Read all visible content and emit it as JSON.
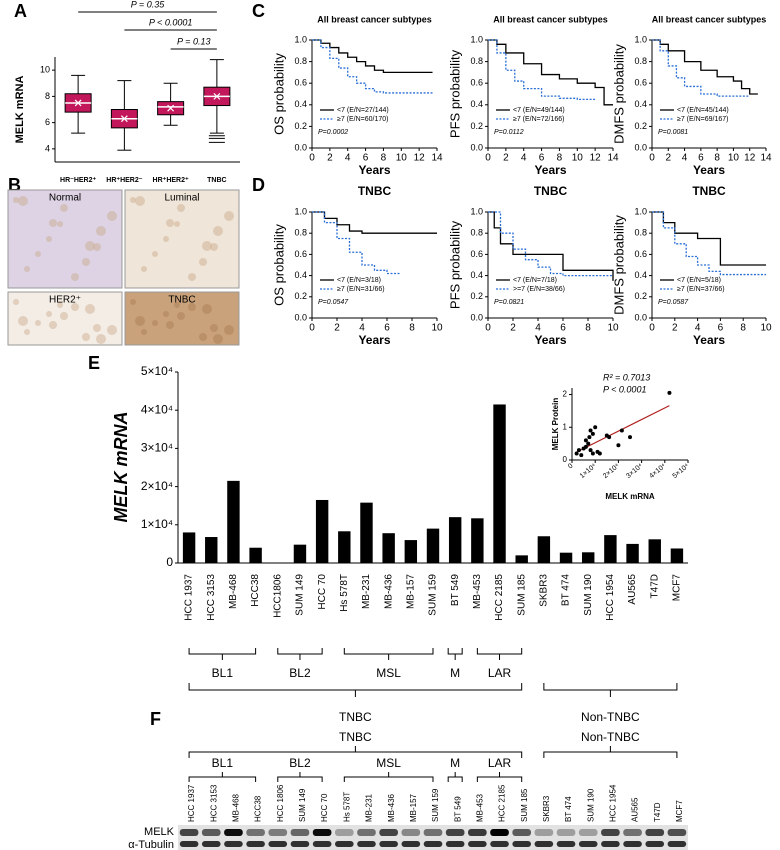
{
  "panel_labels": [
    "A",
    "B",
    "C",
    "D",
    "E",
    "F"
  ],
  "chart_data": [
    {
      "type": "box",
      "ylabel": "MELK mRNA",
      "color": "#c2185b",
      "categories": [
        "HR⁻HER2⁺",
        "HR⁺HER2⁻",
        "HR⁺HER2⁺",
        "TNBC"
      ],
      "boxes": [
        {
          "whisker_low": 5.2,
          "q1": 6.8,
          "median": 7.5,
          "q3": 8.2,
          "whisker_high": 9.6,
          "mean": 7.5
        },
        {
          "whisker_low": 3.9,
          "q1": 5.6,
          "median": 6.3,
          "q3": 7.0,
          "whisker_high": 9.2,
          "mean": 6.3
        },
        {
          "whisker_low": 5.8,
          "q1": 6.6,
          "median": 7.2,
          "q3": 7.6,
          "whisker_high": 9.0,
          "mean": 7.1
        },
        {
          "whisker_low": 5.2,
          "q1": 7.3,
          "median": 8.0,
          "q3": 8.7,
          "whisker_high": 10.8,
          "mean": 8.0,
          "outliers": [
            4.5,
            4.8,
            5.0
          ]
        }
      ],
      "ylim": [
        3,
        11
      ],
      "yticks": [
        4,
        6,
        8,
        10
      ],
      "comparisons": [
        "P = 0.35",
        "P < 0.0001",
        "P = 0.13"
      ]
    },
    {
      "type": "step",
      "title": "All breast cancer subtypes",
      "ylabel": "OS probability",
      "xlabel": "Years",
      "xlim": [
        0,
        14
      ],
      "xticks": [
        0,
        2,
        4,
        6,
        8,
        10,
        12,
        14
      ],
      "ylim": [
        0,
        1
      ],
      "yticks": [
        {
          "value": 0,
          "label": "0.0"
        },
        0.2,
        0.4,
        0.6,
        0.8,
        {
          "value": 1,
          "label": "1.0"
        }
      ],
      "series": [
        {
          "name": "<7 (E/N=27/144)",
          "color": "#000000",
          "x": [
            0,
            1,
            2,
            3,
            4,
            5,
            6,
            7,
            8,
            10,
            12,
            13.5
          ],
          "values": [
            1,
            0.97,
            0.93,
            0.88,
            0.84,
            0.8,
            0.76,
            0.72,
            0.7,
            0.7,
            0.7,
            0.7
          ]
        },
        {
          "name": "≥7 (E/N=60/170)",
          "color": "#2a6fd6",
          "x": [
            0,
            1,
            2,
            3,
            4,
            5,
            6,
            7,
            8,
            10,
            12,
            13.5
          ],
          "values": [
            1,
            0.93,
            0.83,
            0.74,
            0.66,
            0.6,
            0.55,
            0.52,
            0.51,
            0.51,
            0.51,
            0.51
          ]
        }
      ],
      "annotation": "P=0.0002"
    },
    {
      "type": "step",
      "title": "All breast cancer subtypes",
      "ylabel": "PFS probability",
      "xlabel": "Years",
      "xlim": [
        0,
        14
      ],
      "xticks": [
        0,
        2,
        4,
        6,
        8,
        10,
        12,
        14
      ],
      "ylim": [
        0,
        1
      ],
      "yticks": [
        {
          "value": 0,
          "label": "0.0"
        },
        0.2,
        0.4,
        0.6,
        0.8,
        {
          "value": 1,
          "label": "1.0"
        }
      ],
      "series": [
        {
          "name": "<7 (E/N=49/144)",
          "color": "#000000",
          "x": [
            0,
            1,
            2,
            4,
            6,
            8,
            10,
            12,
            13,
            14
          ],
          "values": [
            1,
            0.96,
            0.88,
            0.78,
            0.68,
            0.64,
            0.6,
            0.56,
            0.4,
            0.4
          ]
        },
        {
          "name": "≥7 (E/N=72/166)",
          "color": "#2a6fd6",
          "x": [
            0,
            1,
            2,
            3,
            4,
            6,
            8,
            10,
            12
          ],
          "values": [
            1,
            0.88,
            0.72,
            0.62,
            0.55,
            0.48,
            0.46,
            0.45,
            0.45
          ]
        }
      ],
      "annotation": "P=0.0112"
    },
    {
      "type": "step",
      "title": "All breast cancer subtypes",
      "ylabel": "DMFS probability",
      "xlabel": "Years",
      "xlim": [
        0,
        14
      ],
      "xticks": [
        0,
        2,
        4,
        6,
        8,
        10,
        12,
        14
      ],
      "ylim": [
        0,
        1
      ],
      "yticks": [
        {
          "value": 0,
          "label": "0.0"
        },
        0.2,
        0.4,
        0.6,
        0.8,
        {
          "value": 1,
          "label": "1.0"
        }
      ],
      "series": [
        {
          "name": "<7 (E/N=45/144)",
          "color": "#000000",
          "x": [
            0,
            1,
            2,
            4,
            6,
            8,
            10,
            11,
            12,
            13
          ],
          "values": [
            1,
            0.96,
            0.9,
            0.8,
            0.72,
            0.66,
            0.62,
            0.55,
            0.5,
            0.5
          ]
        },
        {
          "name": "≥7 (E/N=69/167)",
          "color": "#2a6fd6",
          "x": [
            0,
            1,
            2,
            3,
            4,
            6,
            8,
            10,
            12
          ],
          "values": [
            1,
            0.9,
            0.76,
            0.65,
            0.57,
            0.5,
            0.48,
            0.48,
            0.48
          ]
        }
      ],
      "annotation": "P=0.0081"
    },
    {
      "type": "step",
      "title": "TNBC",
      "ylabel": "OS probability",
      "xlabel": "Years",
      "xlim": [
        0,
        10
      ],
      "xticks": [
        0,
        2,
        4,
        6,
        8,
        10
      ],
      "ylim": [
        0,
        1
      ],
      "yticks": [
        {
          "value": 0,
          "label": "0.0"
        },
        0.2,
        0.4,
        0.6,
        0.8,
        {
          "value": 1,
          "label": "1.0"
        }
      ],
      "series": [
        {
          "name": "<7 (E/N=3/18)",
          "color": "#000000",
          "x": [
            0,
            1,
            2,
            3,
            4,
            6,
            8,
            10
          ],
          "values": [
            1,
            0.94,
            0.88,
            0.82,
            0.8,
            0.8,
            0.8,
            0.8
          ]
        },
        {
          "name": "≥7 (E/N=31/66)",
          "color": "#2a6fd6",
          "x": [
            0,
            1,
            2,
            3,
            4,
            5,
            6,
            7
          ],
          "values": [
            1,
            0.9,
            0.75,
            0.62,
            0.5,
            0.45,
            0.42,
            0.42
          ]
        }
      ],
      "annotation": "P=0.0547"
    },
    {
      "type": "step",
      "title": "TNBC",
      "ylabel": "PFS probability",
      "xlabel": "Years",
      "xlim": [
        0,
        10
      ],
      "xticks": [
        0,
        2,
        4,
        6,
        8,
        10
      ],
      "ylim": [
        0,
        1
      ],
      "yticks": [
        {
          "value": 0,
          "label": "0.0"
        },
        0.2,
        0.4,
        0.6,
        0.8,
        {
          "value": 1,
          "label": "1.0"
        }
      ],
      "series": [
        {
          "name": "<7 (E/N=7/18)",
          "color": "#000000",
          "x": [
            0,
            0.5,
            1,
            2,
            4,
            6,
            10
          ],
          "values": [
            1,
            0.85,
            0.7,
            0.6,
            0.6,
            0.45,
            0.35
          ]
        },
        {
          "name": ">=7 (E/N=38/66)",
          "color": "#2a6fd6",
          "x": [
            0,
            1,
            2,
            3,
            4,
            5,
            6,
            10
          ],
          "values": [
            1,
            0.8,
            0.65,
            0.55,
            0.48,
            0.42,
            0.4,
            0.4
          ]
        }
      ],
      "annotation": "P=0.0821"
    },
    {
      "type": "step",
      "title": "TNBC",
      "ylabel": "DMFS probability",
      "xlabel": "Years",
      "xlim": [
        0,
        10
      ],
      "xticks": [
        0,
        2,
        4,
        6,
        8,
        10
      ],
      "ylim": [
        0,
        1
      ],
      "yticks": [
        {
          "value": 0,
          "label": "0.0"
        },
        0.2,
        0.4,
        0.6,
        0.8,
        {
          "value": 1,
          "label": "1.0"
        }
      ],
      "series": [
        {
          "name": "<7 (E/N=5/18)",
          "color": "#000000",
          "x": [
            0,
            1,
            2,
            4,
            6,
            8,
            10
          ],
          "values": [
            1,
            0.9,
            0.8,
            0.75,
            0.5,
            0.5,
            0.5
          ]
        },
        {
          "name": "≥7 (E/N=37/66)",
          "color": "#2a6fd6",
          "x": [
            0,
            1,
            2,
            3,
            4,
            5,
            6,
            10
          ],
          "values": [
            1,
            0.85,
            0.7,
            0.58,
            0.5,
            0.44,
            0.41,
            0.41
          ]
        }
      ],
      "annotation": "P=0.0587"
    },
    {
      "type": "bar",
      "ylabel": "MELK mRNA",
      "color": "#000000",
      "categories": [
        "HCC 1937",
        "HCC 3153",
        "MB-468",
        "HCC38",
        "HCC1806",
        "SUM 149",
        "HCC 70",
        "Hs 578T",
        "MB-231",
        "MB-436",
        "MB-157",
        "SUM 159",
        "BT 549",
        "MB-453",
        "HCC 2185",
        "SUM 185",
        "SKBR3",
        "BT 474",
        "SUM 190",
        "HCC 1954",
        "AU565",
        "T47D",
        "MCF7"
      ],
      "values": [
        8000,
        6800,
        21500,
        4000,
        0,
        4800,
        16500,
        8300,
        15800,
        7800,
        6000,
        9000,
        12000,
        11700,
        41500,
        2000,
        7000,
        2700,
        2800,
        7300,
        5000,
        6200,
        3800
      ],
      "ylim": [
        0,
        50000
      ],
      "yticks": [
        0,
        {
          "value": 10000,
          "label": "1×10⁴"
        },
        {
          "value": 20000,
          "label": "2×10⁴"
        },
        {
          "value": 30000,
          "label": "3×10⁴"
        },
        {
          "value": 40000,
          "label": "4×10⁴"
        },
        {
          "value": 50000,
          "label": "5×10⁴"
        }
      ],
      "subtypes": [
        "BL1",
        "BL2",
        "MSL",
        "M",
        "LAR"
      ],
      "classes": [
        "TNBC",
        "Non-TNBC"
      ]
    },
    {
      "type": "scatter",
      "xlabel": "MELK mRNA",
      "ylabel": "MELK Protein",
      "color": "#000000",
      "fit_color": "#b22222",
      "annotations": [
        "R² = 0.7013",
        "P < 0.0001"
      ],
      "x": [
        2000,
        3000,
        4000,
        5000,
        6000,
        7000,
        8000,
        9000,
        10000,
        11000,
        12000,
        6000,
        7500,
        8000,
        9000,
        15000,
        16000,
        20000,
        21500,
        25000,
        42000
      ],
      "values": [
        0.2,
        0.3,
        0.15,
        0.35,
        0.4,
        0.5,
        0.3,
        0.8,
        1.0,
        0.25,
        0.2,
        0.6,
        0.7,
        0.9,
        0.2,
        0.75,
        0.7,
        0.45,
        0.9,
        0.7,
        2.05
      ],
      "xlim": [
        0,
        50000
      ],
      "xticks": [
        0,
        {
          "value": 10000,
          "label": "1×10⁴"
        },
        {
          "value": 20000,
          "label": "2×10⁴"
        },
        {
          "value": 30000,
          "label": "3×10⁴"
        },
        {
          "value": 40000,
          "label": "4×10⁴"
        },
        {
          "value": 50000,
          "label": "5×10⁴"
        }
      ],
      "ylim": [
        0,
        2.2
      ],
      "yticks": [
        0,
        1,
        2
      ]
    }
  ],
  "panel_b": {
    "labels": [
      "Normal",
      "Luminal",
      "HER2⁺",
      "TNBC"
    ]
  },
  "panel_f": {
    "classes": [
      "TNBC",
      "Non-TNBC"
    ],
    "subtypes": [
      "BL1",
      "BL2",
      "MSL",
      "M",
      "LAR"
    ],
    "lanes": [
      "HCC 1937",
      "HCC 3153",
      "MB-468",
      "HCC38",
      "HCC 1806",
      "SUM 149",
      "HCC 70",
      "Hs 578T",
      "MB-231",
      "MB-436",
      "MB-157",
      "SUM 159",
      "BT 549",
      "MB-453",
      "HCC 2185",
      "SUM 185",
      "SKBR3",
      "BT 474",
      "SUM 190",
      "HCC 1954",
      "AU565",
      "T47D",
      "MCF7"
    ],
    "rows": [
      "MELK",
      "α-Tubulin"
    ]
  }
}
